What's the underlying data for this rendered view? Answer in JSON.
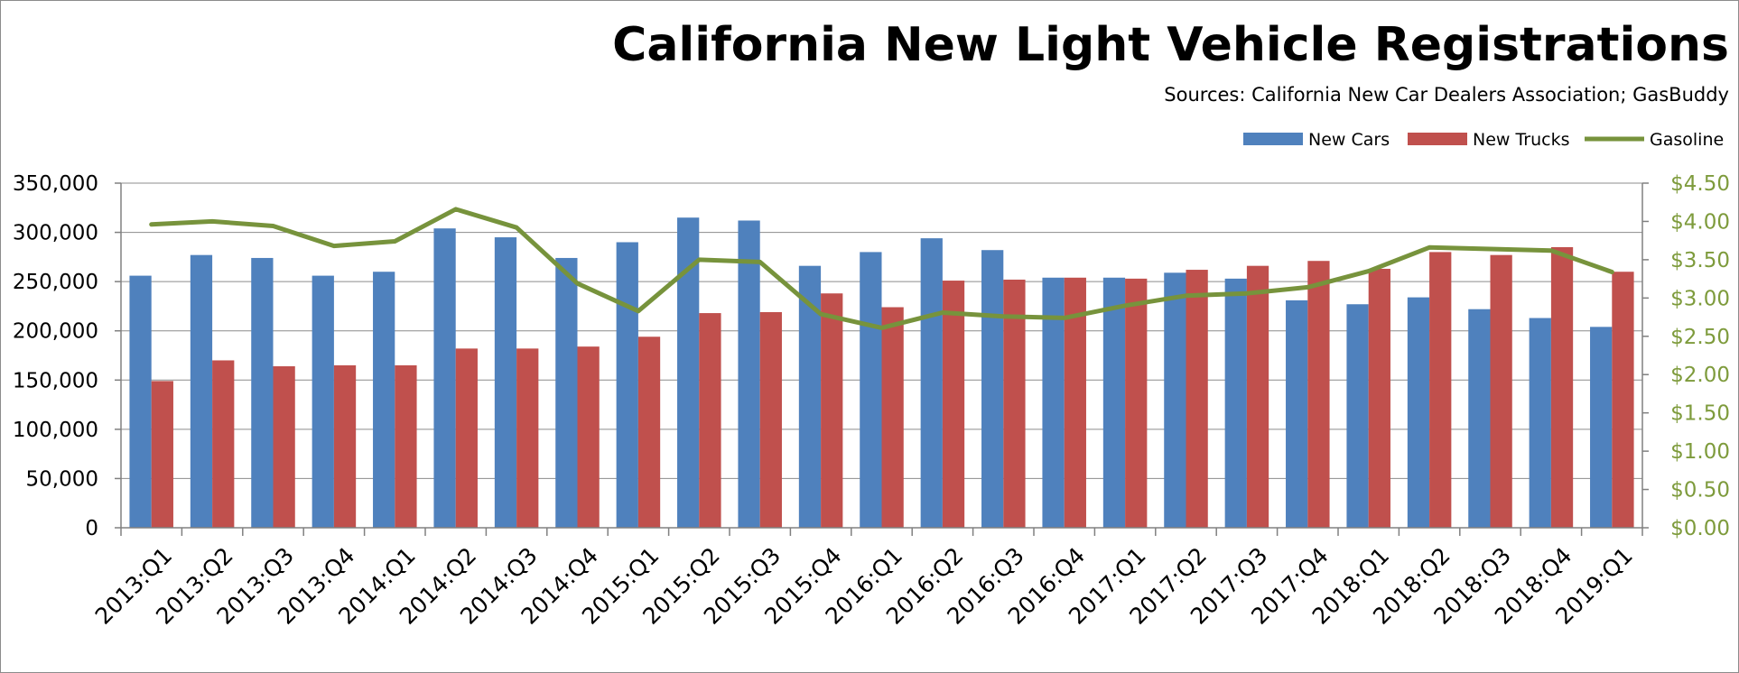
{
  "chart_data": {
    "type": "bar",
    "title": "California New Light Vehicle Registrations",
    "subtitle": "Sources:  California New Car Dealers Association; GasBuddy",
    "categories": [
      "2013:Q1",
      "2013:Q2",
      "2013:Q3",
      "2013:Q4",
      "2014:Q1",
      "2014:Q2",
      "2014:Q3",
      "2014:Q4",
      "2015:Q1",
      "2015:Q2",
      "2015:Q3",
      "2015:Q4",
      "2016:Q1",
      "2016:Q2",
      "2016:Q3",
      "2016:Q4",
      "2017:Q1",
      "2017:Q2",
      "2017:Q3",
      "2017:Q4",
      "2018:Q1",
      "2018:Q2",
      "2018:Q3",
      "2018:Q4",
      "2019:Q1"
    ],
    "series": [
      {
        "name": "New Cars",
        "kind": "bar",
        "axis": "left",
        "color": "#4f81bd",
        "values": [
          256000,
          277000,
          274000,
          256000,
          260000,
          304000,
          295000,
          274000,
          290000,
          315000,
          312000,
          266000,
          280000,
          294000,
          282000,
          254000,
          254000,
          259000,
          253000,
          231000,
          227000,
          234000,
          222000,
          213000,
          204000
        ]
      },
      {
        "name": "New Trucks",
        "kind": "bar",
        "axis": "left",
        "color": "#c0504d",
        "values": [
          149000,
          170000,
          164000,
          165000,
          165000,
          182000,
          182000,
          184000,
          194000,
          218000,
          219000,
          238000,
          224000,
          251000,
          252000,
          254000,
          253000,
          262000,
          266000,
          271000,
          263000,
          280000,
          277000,
          285000,
          260000
        ]
      },
      {
        "name": "Gasoline",
        "kind": "line",
        "axis": "right",
        "color": "#77933c",
        "values": [
          3.96,
          4.0,
          3.94,
          3.68,
          3.74,
          4.16,
          3.92,
          3.19,
          2.83,
          3.5,
          3.47,
          2.79,
          2.61,
          2.81,
          2.76,
          2.74,
          2.9,
          3.03,
          3.06,
          3.14,
          3.35,
          3.66,
          3.64,
          3.62,
          3.34
        ]
      }
    ],
    "y_left": {
      "min": 0,
      "max": 350000,
      "step": 50000,
      "tick_labels": [
        "0",
        "50,000",
        "100,000",
        "150,000",
        "200,000",
        "250,000",
        "300,000",
        "350,000"
      ]
    },
    "y_right": {
      "min": 0,
      "max": 4.5,
      "step": 0.5,
      "tick_labels": [
        "$0.00",
        "$0.50",
        "$1.00",
        "$1.50",
        "$2.00",
        "$2.50",
        "$3.00",
        "$3.50",
        "$4.00",
        "$4.50"
      ]
    },
    "grid": true,
    "legend": {
      "position": "top-right",
      "entries": [
        "New Cars",
        "New Trucks",
        "Gasoline"
      ]
    }
  }
}
